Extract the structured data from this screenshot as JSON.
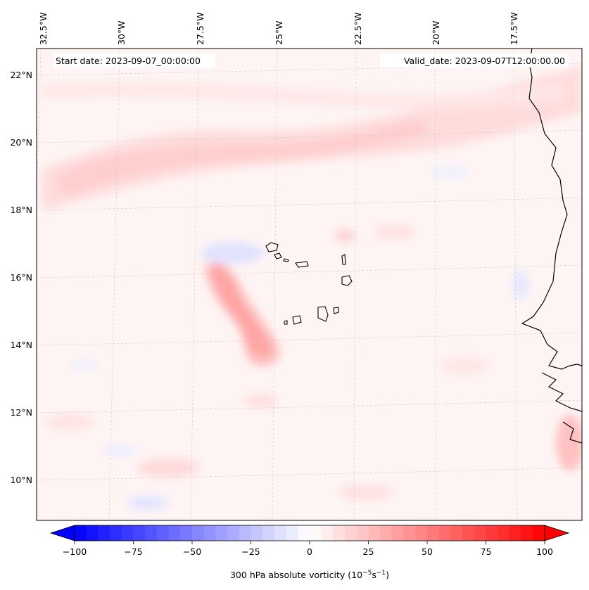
{
  "map": {
    "start_label": "Start date: 2023-09-07_00:00:00",
    "valid_label": "Valid_date: 2023-09-07T12:00:00.00",
    "top_labels": [
      "32.5°W",
      "30°W",
      "27.5°W",
      "25°W",
      "22.5°W",
      "20°W",
      "17.5°W"
    ],
    "left_labels": [
      "22°N",
      "20°N",
      "18°N",
      "16°N",
      "14°N",
      "12°N",
      "10°N"
    ]
  },
  "colorbar": {
    "ticks": [
      "−100",
      "−75",
      "−50",
      "−25",
      "0",
      "25",
      "50",
      "75",
      "100"
    ],
    "tick_values": [
      -100,
      -75,
      -50,
      -25,
      0,
      25,
      50,
      75,
      100
    ],
    "min": -100,
    "max": 100,
    "label_prefix": "300 hPa absolute vorticity (10",
    "label_exp1": "−5",
    "label_mid": "s",
    "label_exp2": "−1",
    "label_suffix": ")",
    "low_color": "#0000ff",
    "mid_color": "#ffffff",
    "high_color": "#ff0000"
  }
}
